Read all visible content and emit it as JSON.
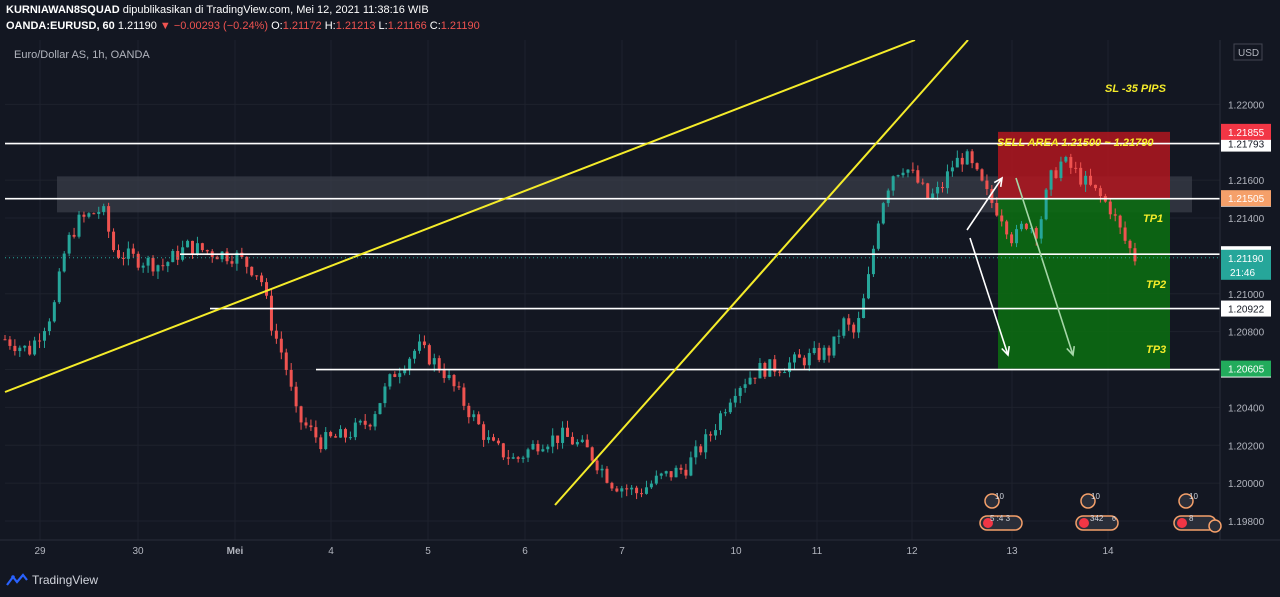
{
  "header": {
    "publisher": "KURNIAWAN8SQUAD",
    "published_text": "dipublikasikan di TradingView.com, Mei 12, 2021 11:38:16 WIB",
    "symbol": "OANDA:EURUSD, 60",
    "last_price": "1.21190",
    "change": "▼ −0.00293 (−0.24%)",
    "o_label": "O:",
    "o_value": "1.21172",
    "h_label": "H:",
    "h_value": "1.21213",
    "l_label": "L:",
    "l_value": "1.21166",
    "c_label": "C:",
    "c_value": "1.21190"
  },
  "footer": {
    "brand": "TradingView"
  },
  "chart_data": {
    "type": "candlestick",
    "title": "Euro/Dollar AS, 1h, OANDA",
    "currency": "USD",
    "ylim": [
      1.197,
      1.2234
    ],
    "y_ticks": [
      "1.22000",
      "1.21800",
      "1.21600",
      "1.21400",
      "1.21200",
      "1.21000",
      "1.20800",
      "1.20600",
      "1.20400",
      "1.20200",
      "1.20000",
      "1.19800"
    ],
    "x_ticks": [
      "29",
      "30",
      "Mei",
      "4",
      "5",
      "6",
      "7",
      "10",
      "11",
      "12",
      "13",
      "14"
    ],
    "series_close_path": [
      [
        0.0,
        1.2076
      ],
      [
        0.02,
        1.207
      ],
      [
        0.04,
        1.2092
      ],
      [
        0.05,
        1.2125
      ],
      [
        0.06,
        1.2138
      ],
      [
        0.08,
        1.2145
      ],
      [
        0.09,
        1.2122
      ],
      [
        0.11,
        1.2118
      ],
      [
        0.13,
        1.2115
      ],
      [
        0.15,
        1.2125
      ],
      [
        0.17,
        1.2122
      ],
      [
        0.19,
        1.212
      ],
      [
        0.21,
        1.211
      ],
      [
        0.22,
        1.2082
      ],
      [
        0.23,
        1.2065
      ],
      [
        0.24,
        1.2035
      ],
      [
        0.26,
        1.2022
      ],
      [
        0.28,
        1.2025
      ],
      [
        0.3,
        1.2033
      ],
      [
        0.32,
        1.2058
      ],
      [
        0.34,
        1.2072
      ],
      [
        0.36,
        1.206
      ],
      [
        0.38,
        1.204
      ],
      [
        0.4,
        1.202
      ],
      [
        0.42,
        1.2012
      ],
      [
        0.44,
        1.2022
      ],
      [
        0.46,
        1.2025
      ],
      [
        0.48,
        1.2017
      ],
      [
        0.5,
        1.2
      ],
      [
        0.52,
        1.1995
      ],
      [
        0.54,
        1.2003
      ],
      [
        0.56,
        1.2008
      ],
      [
        0.58,
        1.2025
      ],
      [
        0.6,
        1.205
      ],
      [
        0.62,
        1.206
      ],
      [
        0.64,
        1.2062
      ],
      [
        0.66,
        1.2066
      ],
      [
        0.68,
        1.207
      ],
      [
        0.69,
        1.2085
      ],
      [
        0.7,
        1.2078
      ],
      [
        0.71,
        1.2105
      ],
      [
        0.72,
        1.2145
      ],
      [
        0.73,
        1.2163
      ],
      [
        0.74,
        1.2168
      ],
      [
        0.75,
        1.216
      ],
      [
        0.76,
        1.215
      ],
      [
        0.77,
        1.2155
      ],
      [
        0.78,
        1.2168
      ],
      [
        0.79,
        1.2173
      ],
      [
        0.8,
        1.2162
      ],
      [
        0.81,
        1.215
      ],
      [
        0.82,
        1.2142
      ],
      [
        0.83,
        1.2128
      ],
      [
        0.84,
        1.2138
      ],
      [
        0.85,
        1.2133
      ],
      [
        0.86,
        1.216
      ],
      [
        0.87,
        1.217
      ],
      [
        0.88,
        1.2165
      ],
      [
        0.89,
        1.2158
      ],
      [
        0.9,
        1.2152
      ],
      [
        0.91,
        1.2145
      ],
      [
        0.92,
        1.213
      ],
      [
        0.93,
        1.2119
      ]
    ],
    "horizontal_levels": [
      {
        "price": 1.21793,
        "label": "1.21793"
      },
      {
        "price": 1.21502,
        "label": "1.21502"
      },
      {
        "price": 1.21209,
        "label": "1.21209"
      },
      {
        "price": 1.20922,
        "label": "1.20922"
      },
      {
        "price": 1.206,
        "label": "1.20600"
      }
    ],
    "price_tags": [
      {
        "label": "1.21855",
        "color": "#f23645"
      },
      {
        "label": "1.21505",
        "color": "#f5a06a"
      },
      {
        "label": "1.21190",
        "sub": "21:46",
        "color": "#26a69a"
      },
      {
        "label": "1.20605",
        "color": "#22ab5c"
      }
    ],
    "annotations": {
      "sl": "SL -35 PIPS",
      "sell_area": "SELL AREA 1.21500 ~ 1.21790",
      "tp1": "TP1",
      "tp2": "TP2",
      "tp3": "TP3"
    },
    "event_labels": [
      "10",
      "10",
      "10",
      "5 ",
      ":4 3",
      "342",
      "6",
      "8"
    ]
  },
  "colors": {
    "background": "#131722",
    "up": "#26a69a",
    "down": "#ef5350",
    "trendline": "#f5ec2a",
    "level": "#ffffff",
    "risk_zone": "#b2161f",
    "reward_zone": "#0c6a12"
  }
}
